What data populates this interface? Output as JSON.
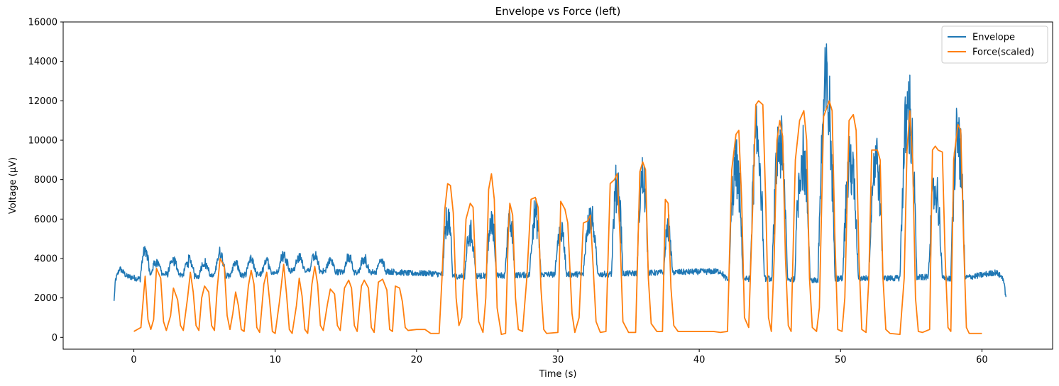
{
  "chart_data": {
    "type": "line",
    "title": "Envelope vs Force (left)",
    "xlabel": "Time (s)",
    "ylabel": "Voltage (µV)",
    "xlim": [
      -5,
      65
    ],
    "ylim": [
      -600,
      16000
    ],
    "xticks": [
      0,
      10,
      20,
      30,
      40,
      50,
      60
    ],
    "yticks": [
      0,
      2000,
      4000,
      6000,
      8000,
      10000,
      12000,
      14000,
      16000
    ],
    "grid": false,
    "legend": "top-right",
    "series": [
      {
        "name": "Envelope",
        "color": "#1f77b4",
        "baseline": [
          [
            -1.4,
            1850
          ],
          [
            -1.3,
            2900
          ],
          [
            -1.0,
            3500
          ],
          [
            -0.5,
            3100
          ],
          [
            0.5,
            2950
          ],
          [
            1.5,
            3200
          ],
          [
            3.0,
            3200
          ],
          [
            4.5,
            3100
          ],
          [
            6.0,
            3100
          ],
          [
            7.5,
            3150
          ],
          [
            9.0,
            3200
          ],
          [
            10.5,
            3350
          ],
          [
            12.0,
            3450
          ],
          [
            13.5,
            3350
          ],
          [
            15.0,
            3300
          ],
          [
            16.5,
            3300
          ],
          [
            18.0,
            3350
          ],
          [
            19.5,
            3250
          ],
          [
            21.0,
            3250
          ],
          [
            23.0,
            3100
          ],
          [
            30.0,
            3200
          ],
          [
            33.0,
            3200
          ],
          [
            38.0,
            3300
          ],
          [
            41.5,
            3350
          ],
          [
            42.0,
            2900
          ],
          [
            44.0,
            3000
          ],
          [
            48.0,
            2900
          ],
          [
            50.0,
            3000
          ],
          [
            54.0,
            3000
          ],
          [
            56.0,
            3050
          ],
          [
            58.0,
            2950
          ],
          [
            59.5,
            3100
          ],
          [
            61.0,
            3300
          ],
          [
            61.5,
            3000
          ],
          [
            61.7,
            2050
          ]
        ],
        "noise": 150,
        "bursts": [
          [
            0.8,
            4700,
            0.35
          ],
          [
            1.6,
            4000,
            0.4
          ],
          [
            2.8,
            4050,
            0.4
          ],
          [
            3.9,
            4100,
            0.4
          ],
          [
            5.0,
            3950,
            0.4
          ],
          [
            6.1,
            4550,
            0.4
          ],
          [
            7.2,
            3900,
            0.35
          ],
          [
            8.3,
            4100,
            0.35
          ],
          [
            9.4,
            4000,
            0.35
          ],
          [
            10.6,
            4400,
            0.4
          ],
          [
            11.7,
            4200,
            0.35
          ],
          [
            12.8,
            4300,
            0.35
          ],
          [
            13.9,
            4050,
            0.35
          ],
          [
            15.2,
            4250,
            0.35
          ],
          [
            16.3,
            4150,
            0.35
          ],
          [
            17.5,
            4000,
            0.35
          ],
          [
            22.2,
            6900,
            0.35
          ],
          [
            23.8,
            5900,
            0.4
          ],
          [
            25.3,
            6500,
            0.35
          ],
          [
            26.6,
            6500,
            0.35
          ],
          [
            28.4,
            7050,
            0.4
          ],
          [
            30.2,
            6100,
            0.4
          ],
          [
            32.3,
            6900,
            0.5
          ],
          [
            34.2,
            9050,
            0.4
          ],
          [
            36.0,
            9450,
            0.4
          ],
          [
            37.8,
            6200,
            0.3
          ],
          [
            42.6,
            10100,
            0.5
          ],
          [
            44.1,
            12000,
            0.5
          ],
          [
            45.7,
            11800,
            0.55
          ],
          [
            47.3,
            11000,
            0.55
          ],
          [
            49.0,
            15200,
            0.6
          ],
          [
            50.7,
            10500,
            0.55
          ],
          [
            52.5,
            10900,
            0.5
          ],
          [
            54.8,
            13900,
            0.6
          ],
          [
            56.7,
            8800,
            0.5
          ],
          [
            58.3,
            12200,
            0.5
          ]
        ]
      },
      {
        "name": "Force(scaled)",
        "color": "#ff7f0e",
        "points": [
          [
            0.0,
            300
          ],
          [
            0.5,
            500
          ],
          [
            0.8,
            3100
          ],
          [
            1.0,
            900
          ],
          [
            1.2,
            400
          ],
          [
            1.4,
            900
          ],
          [
            1.6,
            3500
          ],
          [
            1.9,
            3000
          ],
          [
            2.1,
            800
          ],
          [
            2.3,
            350
          ],
          [
            2.6,
            1100
          ],
          [
            2.8,
            2500
          ],
          [
            3.1,
            1900
          ],
          [
            3.3,
            600
          ],
          [
            3.5,
            350
          ],
          [
            3.8,
            2000
          ],
          [
            4.0,
            3300
          ],
          [
            4.2,
            2300
          ],
          [
            4.4,
            600
          ],
          [
            4.6,
            350
          ],
          [
            4.8,
            2000
          ],
          [
            5.0,
            2600
          ],
          [
            5.3,
            2300
          ],
          [
            5.5,
            600
          ],
          [
            5.7,
            350
          ],
          [
            5.9,
            2500
          ],
          [
            6.1,
            4000
          ],
          [
            6.4,
            3600
          ],
          [
            6.6,
            1100
          ],
          [
            6.8,
            400
          ],
          [
            7.0,
            1200
          ],
          [
            7.2,
            2300
          ],
          [
            7.4,
            1600
          ],
          [
            7.6,
            400
          ],
          [
            7.8,
            300
          ],
          [
            8.1,
            2600
          ],
          [
            8.3,
            3400
          ],
          [
            8.5,
            2700
          ],
          [
            8.7,
            500
          ],
          [
            8.9,
            250
          ],
          [
            9.2,
            2700
          ],
          [
            9.4,
            3300
          ],
          [
            9.6,
            1900
          ],
          [
            9.8,
            300
          ],
          [
            10.0,
            200
          ],
          [
            10.3,
            1800
          ],
          [
            10.6,
            3700
          ],
          [
            10.8,
            2200
          ],
          [
            11.0,
            400
          ],
          [
            11.2,
            200
          ],
          [
            11.5,
            1600
          ],
          [
            11.7,
            3000
          ],
          [
            11.9,
            2100
          ],
          [
            12.1,
            400
          ],
          [
            12.3,
            200
          ],
          [
            12.6,
            2700
          ],
          [
            12.8,
            3600
          ],
          [
            13.0,
            2700
          ],
          [
            13.2,
            600
          ],
          [
            13.4,
            350
          ],
          [
            13.7,
            1700
          ],
          [
            13.9,
            2450
          ],
          [
            14.2,
            2200
          ],
          [
            14.4,
            600
          ],
          [
            14.6,
            350
          ],
          [
            14.9,
            2500
          ],
          [
            15.2,
            2900
          ],
          [
            15.4,
            2500
          ],
          [
            15.6,
            600
          ],
          [
            15.8,
            300
          ],
          [
            16.1,
            2600
          ],
          [
            16.3,
            2900
          ],
          [
            16.6,
            2500
          ],
          [
            16.8,
            500
          ],
          [
            17.0,
            250
          ],
          [
            17.3,
            2800
          ],
          [
            17.6,
            2950
          ],
          [
            17.9,
            2400
          ],
          [
            18.1,
            400
          ],
          [
            18.3,
            300
          ],
          [
            18.5,
            2600
          ],
          [
            18.8,
            2500
          ],
          [
            19.0,
            1800
          ],
          [
            19.2,
            500
          ],
          [
            19.4,
            350
          ],
          [
            20.0,
            400
          ],
          [
            20.6,
            400
          ],
          [
            21.0,
            200
          ],
          [
            21.6,
            200
          ],
          [
            21.8,
            3000
          ],
          [
            22.0,
            6500
          ],
          [
            22.2,
            7800
          ],
          [
            22.4,
            7700
          ],
          [
            22.6,
            6300
          ],
          [
            22.8,
            2000
          ],
          [
            23.0,
            600
          ],
          [
            23.2,
            1000
          ],
          [
            23.5,
            6000
          ],
          [
            23.8,
            6800
          ],
          [
            24.0,
            6600
          ],
          [
            24.2,
            3000
          ],
          [
            24.4,
            800
          ],
          [
            24.7,
            250
          ],
          [
            24.9,
            2000
          ],
          [
            25.1,
            7500
          ],
          [
            25.3,
            8300
          ],
          [
            25.5,
            7000
          ],
          [
            25.7,
            1500
          ],
          [
            26.0,
            150
          ],
          [
            26.3,
            200
          ],
          [
            26.5,
            5500
          ],
          [
            26.6,
            6800
          ],
          [
            26.8,
            6200
          ],
          [
            27.0,
            2000
          ],
          [
            27.2,
            400
          ],
          [
            27.5,
            300
          ],
          [
            27.8,
            3000
          ],
          [
            28.1,
            7000
          ],
          [
            28.4,
            7100
          ],
          [
            28.6,
            6600
          ],
          [
            28.8,
            2500
          ],
          [
            29.0,
            400
          ],
          [
            29.2,
            200
          ],
          [
            30.0,
            250
          ],
          [
            30.2,
            6900
          ],
          [
            30.5,
            6500
          ],
          [
            30.7,
            5800
          ],
          [
            31.0,
            1200
          ],
          [
            31.2,
            250
          ],
          [
            31.5,
            1000
          ],
          [
            31.8,
            5800
          ],
          [
            32.1,
            5900
          ],
          [
            32.3,
            6200
          ],
          [
            32.5,
            3500
          ],
          [
            32.7,
            800
          ],
          [
            33.0,
            250
          ],
          [
            33.4,
            300
          ],
          [
            33.7,
            7800
          ],
          [
            34.0,
            8000
          ],
          [
            34.2,
            8300
          ],
          [
            34.4,
            5000
          ],
          [
            34.6,
            800
          ],
          [
            35.0,
            250
          ],
          [
            35.5,
            250
          ],
          [
            35.8,
            8400
          ],
          [
            36.0,
            8900
          ],
          [
            36.2,
            8500
          ],
          [
            36.4,
            3000
          ],
          [
            36.6,
            700
          ],
          [
            37.0,
            300
          ],
          [
            37.4,
            300
          ],
          [
            37.6,
            7000
          ],
          [
            37.8,
            6800
          ],
          [
            38.0,
            2500
          ],
          [
            38.2,
            600
          ],
          [
            38.5,
            300
          ],
          [
            40.0,
            300
          ],
          [
            41.0,
            300
          ],
          [
            41.5,
            250
          ],
          [
            42.0,
            300
          ],
          [
            42.3,
            8500
          ],
          [
            42.6,
            10300
          ],
          [
            42.8,
            10500
          ],
          [
            43.0,
            7000
          ],
          [
            43.2,
            1000
          ],
          [
            43.5,
            500
          ],
          [
            43.8,
            7000
          ],
          [
            44.0,
            11800
          ],
          [
            44.2,
            12000
          ],
          [
            44.5,
            11800
          ],
          [
            44.7,
            7000
          ],
          [
            44.9,
            1000
          ],
          [
            45.1,
            300
          ],
          [
            45.3,
            4000
          ],
          [
            45.5,
            10000
          ],
          [
            45.7,
            11000
          ],
          [
            45.9,
            10200
          ],
          [
            46.1,
            4000
          ],
          [
            46.3,
            600
          ],
          [
            46.5,
            300
          ],
          [
            46.8,
            9000
          ],
          [
            47.1,
            11000
          ],
          [
            47.4,
            11500
          ],
          [
            47.6,
            10000
          ],
          [
            47.8,
            3000
          ],
          [
            48.0,
            500
          ],
          [
            48.3,
            300
          ],
          [
            48.5,
            1500
          ],
          [
            48.8,
            11200
          ],
          [
            49.0,
            11600
          ],
          [
            49.2,
            12000
          ],
          [
            49.4,
            11500
          ],
          [
            49.6,
            5000
          ],
          [
            49.8,
            400
          ],
          [
            50.1,
            300
          ],
          [
            50.3,
            2000
          ],
          [
            50.6,
            11000
          ],
          [
            50.9,
            11300
          ],
          [
            51.1,
            10500
          ],
          [
            51.3,
            4000
          ],
          [
            51.5,
            400
          ],
          [
            51.8,
            250
          ],
          [
            52.0,
            3000
          ],
          [
            52.2,
            9500
          ],
          [
            52.6,
            9500
          ],
          [
            52.8,
            9000
          ],
          [
            53.0,
            3000
          ],
          [
            53.2,
            400
          ],
          [
            53.5,
            200
          ],
          [
            54.2,
            150
          ],
          [
            54.5,
            3000
          ],
          [
            54.7,
            9500
          ],
          [
            54.9,
            11500
          ],
          [
            55.1,
            9000
          ],
          [
            55.3,
            2000
          ],
          [
            55.5,
            300
          ],
          [
            55.8,
            250
          ],
          [
            56.3,
            400
          ],
          [
            56.5,
            9500
          ],
          [
            56.7,
            9700
          ],
          [
            56.9,
            9500
          ],
          [
            57.2,
            9400
          ],
          [
            57.4,
            4000
          ],
          [
            57.6,
            500
          ],
          [
            57.8,
            300
          ],
          [
            58.0,
            9000
          ],
          [
            58.3,
            10800
          ],
          [
            58.5,
            10500
          ],
          [
            58.7,
            5000
          ],
          [
            58.9,
            500
          ],
          [
            59.1,
            200
          ],
          [
            59.5,
            200
          ],
          [
            60.0,
            200
          ]
        ]
      }
    ]
  }
}
